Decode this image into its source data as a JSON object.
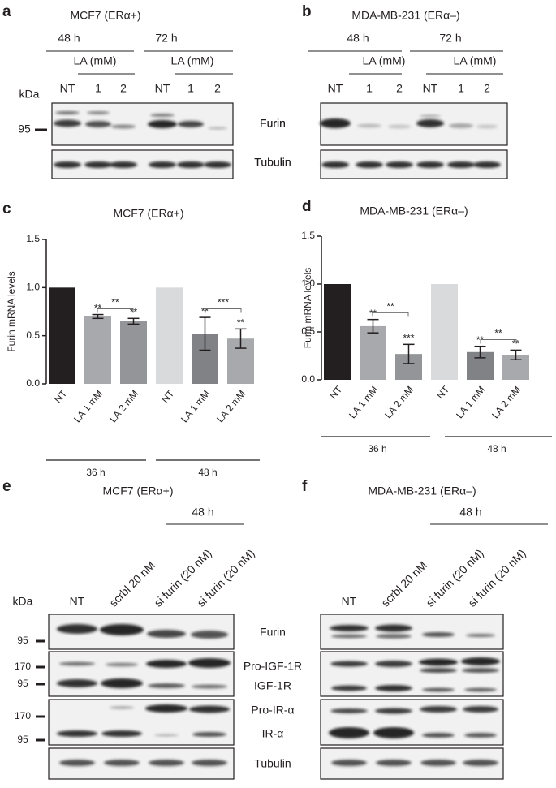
{
  "chart_data": [
    {
      "type": "bar",
      "panel": "c",
      "title": "MCF7 (ERα+)",
      "y_label": "Furin mRNA levels",
      "categories": [
        "NT",
        "LA 1 mM",
        "LA 2 mM",
        "NT",
        "LA 1 mM",
        "LA 2 mM"
      ],
      "values": [
        1.0,
        0.7,
        0.65,
        1.0,
        0.52,
        0.47
      ],
      "errors": [
        0,
        0.02,
        0.03,
        0,
        0.17,
        0.1
      ],
      "colors": [
        "#231f20",
        "#a7a9ac",
        "#939598",
        "#d9dadb",
        "#808285",
        "#a7a9ac"
      ],
      "significance": [
        null,
        "**",
        "**",
        null,
        "**",
        "**"
      ],
      "bracket_labels": [
        "**",
        "***"
      ],
      "groups": [
        "36 h",
        "48 h"
      ],
      "ylim": [
        0,
        1.5
      ],
      "yticks": [
        {
          "value": 0,
          "label": "0.0"
        },
        0.5,
        {
          "value": 1,
          "label": "1.0"
        },
        1.5
      ]
    },
    {
      "type": "bar",
      "panel": "d",
      "title": "MDA-MB-231 (ERα–)",
      "y_label": "Furin mRNA levels",
      "categories": [
        "NT",
        "LA 1 mM",
        "LA 2 mM",
        "NT",
        "LA 1 mM",
        "LA 2 mM"
      ],
      "values": [
        1.0,
        0.56,
        0.27,
        1.0,
        0.29,
        0.26
      ],
      "errors": [
        0,
        0.07,
        0.1,
        0,
        0.06,
        0.05
      ],
      "colors": [
        "#231f20",
        "#a7a9ac",
        "#939598",
        "#d9dadb",
        "#808285",
        "#a7a9ac"
      ],
      "significance": [
        null,
        "**",
        "***",
        null,
        "**",
        "**"
      ],
      "bracket_labels": [
        "**",
        "**"
      ],
      "groups": [
        "36 h",
        "48 h"
      ],
      "ylim": [
        0,
        1.5
      ],
      "yticks": [
        {
          "value": 0,
          "label": "0.0"
        },
        0.5,
        {
          "value": 1,
          "label": "1.0"
        },
        1.5
      ]
    }
  ],
  "panels": {
    "a": {
      "letter": "a",
      "title": "MCF7 (ERα+)",
      "times": [
        "48 h",
        "72 h"
      ],
      "treatments": [
        "LA (mM)",
        "LA (mM)"
      ],
      "lanes": [
        "NT",
        "1",
        "2",
        "NT",
        "1",
        "2"
      ],
      "kda": "kDa",
      "markers": [
        "95"
      ],
      "rows": [
        "Furin",
        "Tubulin"
      ]
    },
    "b": {
      "letter": "b",
      "title": "MDA-MB-231 (ERα–)",
      "times": [
        "48 h",
        "72 h"
      ],
      "treatments": [
        "LA (mM)",
        "LA (mM)"
      ],
      "lanes": [
        "NT",
        "1",
        "2",
        "NT",
        "1",
        "2"
      ],
      "rows": [
        "Furin",
        "Tubulin"
      ]
    },
    "e": {
      "letter": "e",
      "title": "MCF7 (ERα+)",
      "time": "48 h",
      "lanes": [
        "NT",
        "scrbl 20 nM",
        "si furin (20 nM)",
        "si furin (20 nM)"
      ],
      "kda": "kDa",
      "markers": [
        "95",
        "170",
        "95",
        "170",
        "95"
      ],
      "rows": [
        "Furin",
        "Pro-IGF-1R",
        "IGF-1R",
        "Pro-IR-α",
        "IR-α",
        "Tubulin"
      ]
    },
    "f": {
      "letter": "f",
      "title": "MDA-MB-231 (ERα–)",
      "time": "48 h",
      "lanes": [
        "NT",
        "scrbl 20 nM",
        "si furin (20 nM)",
        "si furin (20 nM)"
      ]
    },
    "c": {
      "letter": "c"
    },
    "d": {
      "letter": "d"
    }
  }
}
